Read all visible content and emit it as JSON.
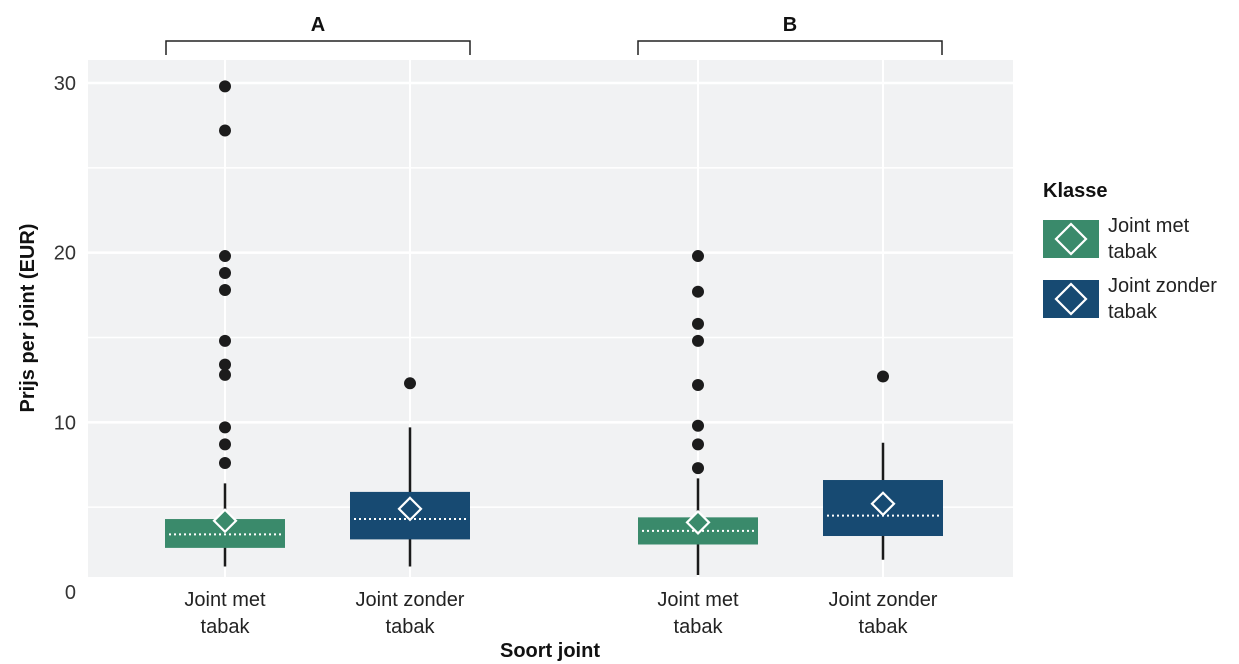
{
  "chart_data": {
    "type": "boxplot",
    "xlabel": "Soort joint",
    "ylabel": "Prijs per joint (EUR)",
    "ylim": [
      0,
      30
    ],
    "yticks": [
      "0",
      "10",
      "20",
      "30"
    ],
    "grid": true,
    "legend_position": "right",
    "legend_title": "Klasse",
    "legend": [
      {
        "line1": "Joint met",
        "line2": "tabak",
        "color": "#3a8a6b"
      },
      {
        "line1": "Joint zonder",
        "line2": "tabak",
        "color": "#174a72"
      }
    ],
    "groups": [
      {
        "label": "A",
        "boxes": [
          {
            "cat1": "Joint met",
            "cat2": "tabak",
            "class": 0,
            "whisker_low": 1.5,
            "q1": 2.6,
            "median": 3.4,
            "q3": 4.3,
            "whisker_high": 6.4,
            "mean": 4.2,
            "outliers": [
              7.6,
              8.7,
              9.7,
              12.8,
              13.4,
              14.8,
              17.8,
              18.8,
              19.8,
              27.2,
              29.8
            ]
          },
          {
            "cat1": "Joint zonder",
            "cat2": "tabak",
            "class": 1,
            "whisker_low": 1.5,
            "q1": 3.1,
            "median": 4.3,
            "q3": 5.9,
            "whisker_high": 9.7,
            "mean": 4.9,
            "outliers": [
              12.3
            ]
          }
        ]
      },
      {
        "label": "B",
        "boxes": [
          {
            "cat1": "Joint met",
            "cat2": "tabak",
            "class": 0,
            "whisker_low": 1.0,
            "q1": 2.8,
            "median": 3.6,
            "q3": 4.4,
            "whisker_high": 6.7,
            "mean": 4.1,
            "outliers": [
              7.3,
              8.7,
              9.8,
              12.2,
              14.8,
              15.8,
              17.7,
              19.8
            ]
          },
          {
            "cat1": "Joint zonder",
            "cat2": "tabak",
            "class": 1,
            "whisker_low": 1.9,
            "q1": 3.3,
            "median": 4.5,
            "q3": 6.6,
            "whisker_high": 8.8,
            "mean": 5.2,
            "outliers": [
              12.7
            ]
          }
        ]
      }
    ]
  }
}
